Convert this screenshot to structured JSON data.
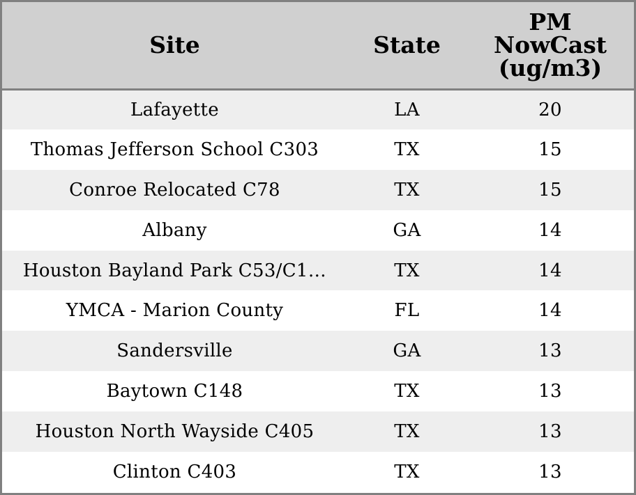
{
  "table": {
    "headers": {
      "site": "Site",
      "state": "State",
      "pm_lines": [
        "PM",
        "NowCast",
        "(ug/m3)"
      ]
    },
    "rows": [
      {
        "site": "Lafayette",
        "state": "LA",
        "pm": "20"
      },
      {
        "site": "Thomas Jefferson School C303",
        "state": "TX",
        "pm": "15"
      },
      {
        "site": "Conroe Relocated C78",
        "state": "TX",
        "pm": "15"
      },
      {
        "site": "Albany",
        "state": "GA",
        "pm": "14"
      },
      {
        "site": "Houston Bayland Park C53/C1…",
        "state": "TX",
        "pm": "14"
      },
      {
        "site": "YMCA - Marion County",
        "state": "FL",
        "pm": "14"
      },
      {
        "site": "Sandersville",
        "state": "GA",
        "pm": "13"
      },
      {
        "site": "Baytown C148",
        "state": "TX",
        "pm": "13"
      },
      {
        "site": "Houston North Wayside C405",
        "state": "TX",
        "pm": "13"
      },
      {
        "site": "Clinton C403",
        "state": "TX",
        "pm": "13"
      }
    ],
    "colors": {
      "header_bg": "#d0d0d0",
      "row_alt_bg": "#eeeeee",
      "row_bg": "#ffffff",
      "border": "#808080"
    }
  }
}
